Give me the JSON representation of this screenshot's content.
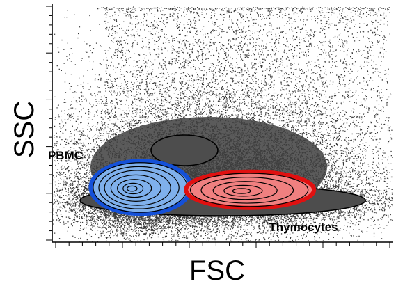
{
  "chart_data": {
    "type": "scatter",
    "title": "",
    "xlabel": "FSC",
    "ylabel": "SSC",
    "xlim": [
      0,
      1
    ],
    "ylim": [
      0,
      1
    ],
    "grid": false,
    "colors": {
      "background_events": "#3a3a3a",
      "density_core": "#4d4d4d",
      "contour_line": "#000000",
      "pbmc_fill": "#7fb0ec",
      "pbmc_outline": "#1450d8",
      "thymocytes_fill": "#f08080",
      "thymocytes_outline": "#e01010"
    },
    "populations": [
      {
        "label": "PBMC",
        "center": [
          0.26,
          0.23
        ],
        "levels": [
          0.94,
          0.8,
          0.66,
          0.5,
          0.34,
          0.2,
          0.1
        ],
        "fill": "#7fb0ec",
        "outline": "#1450d8"
      },
      {
        "label": "Thymocytes",
        "center": [
          0.58,
          0.22
        ],
        "levels": [
          0.92,
          0.72,
          0.5,
          0.3,
          0.14
        ],
        "fill": "#f08080",
        "outline": "#e01010"
      }
    ]
  }
}
